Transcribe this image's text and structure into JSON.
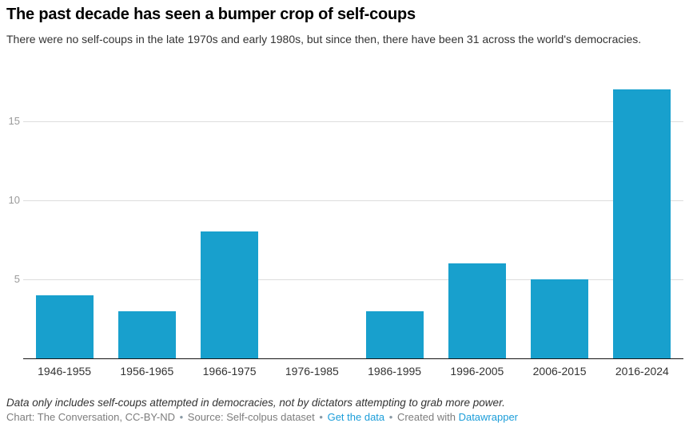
{
  "header": {
    "title": "The past decade has seen a bumper crop of self-coups",
    "subtitle": "There were no self-coups in the late 1970s and early 1980s, but since then, there have been 31 across the world's democracies."
  },
  "chart_data": {
    "type": "bar",
    "title": "The past decade has seen a bumper crop of self-coups",
    "categories": [
      "1946-1955",
      "1956-1965",
      "1966-1975",
      "1976-1985",
      "1986-1995",
      "1996-2005",
      "2006-2015",
      "2016-2024"
    ],
    "values": [
      4,
      3,
      8,
      0,
      3,
      6,
      5,
      17
    ],
    "xlabel": "",
    "ylabel": "",
    "ylim": [
      0,
      17.6
    ],
    "yticks": [
      5,
      10,
      15
    ],
    "grid": true,
    "legend": "none",
    "bar_color": "#18a0cd"
  },
  "footer": {
    "note": "Data only includes self-coups attempted in democracies, not by dictators attempting to grab more power.",
    "credits": {
      "chart": "Chart: The Conversation, CC-BY-ND",
      "separator": "•",
      "source": "Source: Self-colpus dataset",
      "get_data_link": "Get the data",
      "created_with": "Created with",
      "datawrapper_link": "Datawrapper"
    }
  },
  "colors": {
    "bar": "#18a0cd",
    "link": "#1b9dd9",
    "grid": "#dddddd",
    "axis": "#141414",
    "ytick_label": "#9a9a9a"
  }
}
